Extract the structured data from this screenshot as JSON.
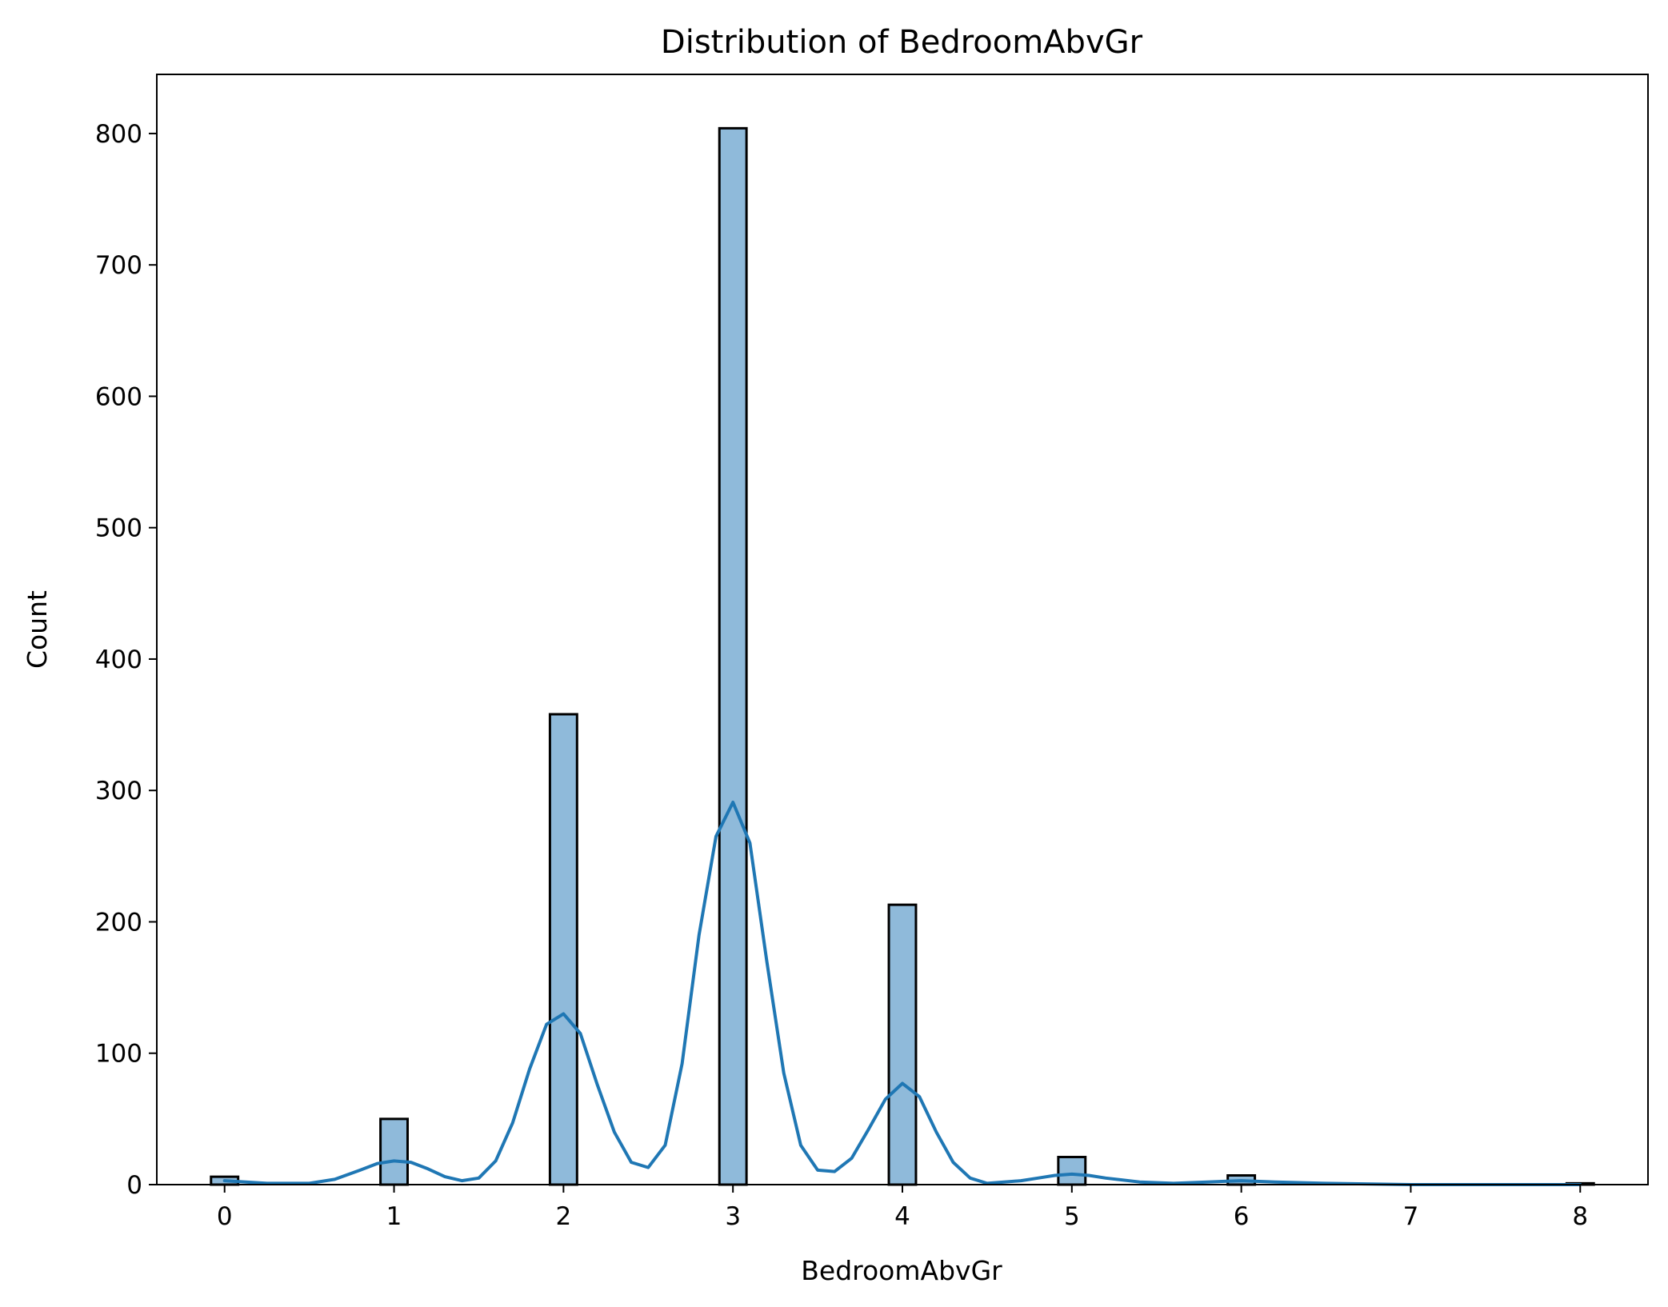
{
  "chart_data": {
    "type": "bar",
    "title": "Distribution of BedroomAbvGr",
    "xlabel": "BedroomAbvGr",
    "ylabel": "Count",
    "xlim": [
      -0.4,
      8.4
    ],
    "ylim": [
      0,
      845
    ],
    "xticks": [
      0,
      1,
      2,
      3,
      4,
      5,
      6,
      7,
      8
    ],
    "yticks": [
      0,
      100,
      200,
      300,
      400,
      500,
      600,
      700,
      800
    ],
    "bin_width": 0.16,
    "bars": [
      {
        "x": 0,
        "count": 6
      },
      {
        "x": 1,
        "count": 50
      },
      {
        "x": 2,
        "count": 358
      },
      {
        "x": 3,
        "count": 804
      },
      {
        "x": 4,
        "count": 213
      },
      {
        "x": 5,
        "count": 21
      },
      {
        "x": 6,
        "count": 7
      },
      {
        "x": 8,
        "count": 1
      }
    ],
    "kde": {
      "x": [
        0,
        0.25,
        0.5,
        0.65,
        0.8,
        0.9,
        1.0,
        1.1,
        1.2,
        1.3,
        1.4,
        1.5,
        1.6,
        1.7,
        1.8,
        1.9,
        2.0,
        2.1,
        2.2,
        2.3,
        2.4,
        2.5,
        2.6,
        2.7,
        2.8,
        2.9,
        3.0,
        3.1,
        3.2,
        3.3,
        3.4,
        3.5,
        3.6,
        3.7,
        3.8,
        3.9,
        4.0,
        4.1,
        4.2,
        4.3,
        4.4,
        4.5,
        4.6,
        4.7,
        4.8,
        4.9,
        5.0,
        5.1,
        5.2,
        5.4,
        5.6,
        5.8,
        6.0,
        6.2,
        6.5,
        7.0,
        7.5,
        8.0
      ],
      "y": [
        3,
        1,
        1,
        4,
        11,
        16,
        18,
        17,
        12,
        6,
        3,
        5,
        18,
        47,
        88,
        122,
        130,
        115,
        76,
        40,
        17,
        13,
        30,
        92,
        190,
        265,
        291,
        260,
        170,
        85,
        30,
        11,
        10,
        20,
        42,
        65,
        77,
        67,
        40,
        17,
        5,
        1,
        2,
        3,
        5,
        7,
        8,
        7,
        5,
        2,
        1,
        2,
        3,
        2,
        1,
        0,
        0,
        0
      ]
    },
    "colors": {
      "bar_fill": "#8fbada",
      "bar_edge": "#000000",
      "kde_line": "#1f77b4"
    },
    "grid": false
  }
}
